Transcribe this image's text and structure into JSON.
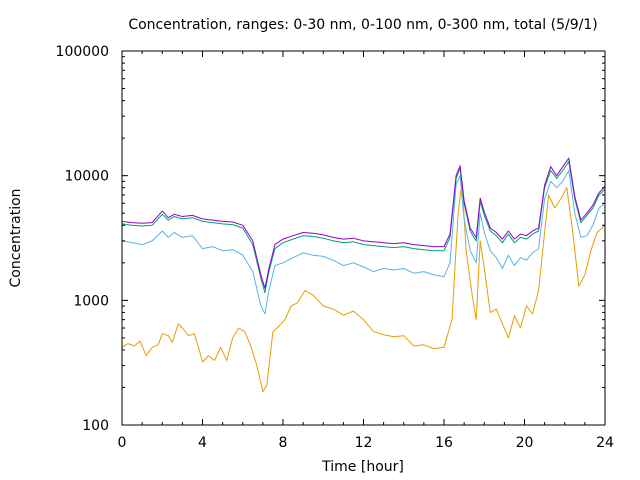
{
  "chart_data": {
    "type": "line",
    "title": "Concentration, ranges: 0-30 nm, 0-100 nm, 0-300 nm, total (5/9/1)",
    "xlabel": "Time [hour]",
    "ylabel": "Concentration",
    "xlim": [
      0,
      24
    ],
    "ylim": [
      100,
      100000
    ],
    "yscale": "log",
    "grid": false,
    "legend": "none",
    "x_ticks": [
      "0",
      "4",
      "8",
      "12",
      "16",
      "20",
      "24"
    ],
    "x_tick_values": [
      0,
      4,
      8,
      12,
      16,
      20,
      24
    ],
    "y_ticks": [
      "100",
      "1000",
      "10000",
      "100000"
    ],
    "y_tick_values": [
      100,
      1000,
      10000,
      100000
    ],
    "series": [
      {
        "color": "#e69f00",
        "points": [
          [
            0,
            420
          ],
          [
            0.3,
            450
          ],
          [
            0.6,
            430
          ],
          [
            0.9,
            470
          ],
          [
            1.2,
            360
          ],
          [
            1.5,
            420
          ],
          [
            1.8,
            440
          ],
          [
            2.0,
            540
          ],
          [
            2.3,
            520
          ],
          [
            2.5,
            460
          ],
          [
            2.8,
            650
          ],
          [
            3.0,
            600
          ],
          [
            3.3,
            520
          ],
          [
            3.6,
            540
          ],
          [
            3.8,
            420
          ],
          [
            4.0,
            320
          ],
          [
            4.3,
            360
          ],
          [
            4.6,
            330
          ],
          [
            4.9,
            420
          ],
          [
            5.2,
            330
          ],
          [
            5.5,
            500
          ],
          [
            5.8,
            600
          ],
          [
            6.1,
            560
          ],
          [
            6.4,
            430
          ],
          [
            6.7,
            300
          ],
          [
            7.0,
            185
          ],
          [
            7.2,
            210
          ],
          [
            7.5,
            560
          ],
          [
            7.8,
            620
          ],
          [
            8.1,
            700
          ],
          [
            8.4,
            900
          ],
          [
            8.7,
            950
          ],
          [
            9.1,
            1200
          ],
          [
            9.5,
            1100
          ],
          [
            10.0,
            900
          ],
          [
            10.5,
            850
          ],
          [
            11.0,
            760
          ],
          [
            11.5,
            820
          ],
          [
            12.0,
            700
          ],
          [
            12.5,
            560
          ],
          [
            13.0,
            530
          ],
          [
            13.5,
            510
          ],
          [
            14.0,
            520
          ],
          [
            14.5,
            430
          ],
          [
            15.0,
            440
          ],
          [
            15.5,
            410
          ],
          [
            16.0,
            420
          ],
          [
            16.4,
            700
          ],
          [
            16.7,
            5000
          ],
          [
            16.9,
            9000
          ],
          [
            17.1,
            2500
          ],
          [
            17.4,
            1100
          ],
          [
            17.6,
            700
          ],
          [
            17.8,
            3000
          ],
          [
            18.0,
            1800
          ],
          [
            18.3,
            800
          ],
          [
            18.6,
            850
          ],
          [
            18.9,
            650
          ],
          [
            19.2,
            500
          ],
          [
            19.5,
            750
          ],
          [
            19.8,
            600
          ],
          [
            20.1,
            900
          ],
          [
            20.4,
            780
          ],
          [
            20.7,
            1200
          ],
          [
            21.0,
            3500
          ],
          [
            21.2,
            7000
          ],
          [
            21.5,
            5500
          ],
          [
            21.8,
            6500
          ],
          [
            22.1,
            8000
          ],
          [
            22.4,
            3500
          ],
          [
            22.7,
            1300
          ],
          [
            23.0,
            1600
          ],
          [
            23.3,
            2500
          ],
          [
            23.6,
            3500
          ],
          [
            24.0,
            4000
          ]
        ]
      },
      {
        "color": "#56b4e9",
        "points": [
          [
            0,
            3000
          ],
          [
            0.5,
            2900
          ],
          [
            1.0,
            2800
          ],
          [
            1.5,
            3000
          ],
          [
            2.0,
            3600
          ],
          [
            2.3,
            3200
          ],
          [
            2.6,
            3500
          ],
          [
            3.0,
            3200
          ],
          [
            3.5,
            3300
          ],
          [
            4.0,
            2600
          ],
          [
            4.5,
            2700
          ],
          [
            5.0,
            2500
          ],
          [
            5.5,
            2550
          ],
          [
            6.0,
            2300
          ],
          [
            6.5,
            1700
          ],
          [
            6.9,
            900
          ],
          [
            7.1,
            780
          ],
          [
            7.3,
            1200
          ],
          [
            7.6,
            1900
          ],
          [
            8.0,
            2000
          ],
          [
            8.5,
            2200
          ],
          [
            9.0,
            2400
          ],
          [
            9.5,
            2300
          ],
          [
            10.0,
            2250
          ],
          [
            10.5,
            2100
          ],
          [
            11.0,
            1900
          ],
          [
            11.5,
            2000
          ],
          [
            12.0,
            1850
          ],
          [
            12.5,
            1700
          ],
          [
            13.0,
            1800
          ],
          [
            13.5,
            1750
          ],
          [
            14.0,
            1800
          ],
          [
            14.5,
            1650
          ],
          [
            15.0,
            1700
          ],
          [
            15.5,
            1600
          ],
          [
            16.0,
            1550
          ],
          [
            16.3,
            2000
          ],
          [
            16.6,
            8500
          ],
          [
            16.8,
            10000
          ],
          [
            17.0,
            4500
          ],
          [
            17.3,
            2500
          ],
          [
            17.6,
            2000
          ],
          [
            17.8,
            5000
          ],
          [
            18.0,
            3500
          ],
          [
            18.3,
            2500
          ],
          [
            18.6,
            2200
          ],
          [
            18.9,
            1800
          ],
          [
            19.2,
            2300
          ],
          [
            19.5,
            1900
          ],
          [
            19.8,
            2200
          ],
          [
            20.1,
            2100
          ],
          [
            20.4,
            2400
          ],
          [
            20.7,
            2600
          ],
          [
            21.0,
            6500
          ],
          [
            21.3,
            9000
          ],
          [
            21.6,
            8000
          ],
          [
            21.9,
            9000
          ],
          [
            22.2,
            11000
          ],
          [
            22.5,
            5000
          ],
          [
            22.8,
            3200
          ],
          [
            23.1,
            3300
          ],
          [
            23.4,
            4000
          ],
          [
            23.7,
            5500
          ],
          [
            24.0,
            6000
          ]
        ]
      },
      {
        "color": "#009e73",
        "points": [
          [
            0,
            4100
          ],
          [
            0.5,
            4000
          ],
          [
            1.0,
            3950
          ],
          [
            1.5,
            4000
          ],
          [
            2.0,
            4900
          ],
          [
            2.3,
            4400
          ],
          [
            2.6,
            4700
          ],
          [
            3.0,
            4500
          ],
          [
            3.5,
            4600
          ],
          [
            4.0,
            4300
          ],
          [
            4.5,
            4200
          ],
          [
            5.0,
            4100
          ],
          [
            5.5,
            4050
          ],
          [
            6.0,
            3800
          ],
          [
            6.5,
            2800
          ],
          [
            6.9,
            1500
          ],
          [
            7.1,
            1150
          ],
          [
            7.3,
            1700
          ],
          [
            7.6,
            2600
          ],
          [
            8.0,
            2900
          ],
          [
            8.5,
            3100
          ],
          [
            9.0,
            3300
          ],
          [
            9.5,
            3250
          ],
          [
            10.0,
            3150
          ],
          [
            10.5,
            3000
          ],
          [
            11.0,
            2900
          ],
          [
            11.5,
            2950
          ],
          [
            12.0,
            2800
          ],
          [
            12.5,
            2750
          ],
          [
            13.0,
            2700
          ],
          [
            13.5,
            2650
          ],
          [
            14.0,
            2700
          ],
          [
            14.5,
            2600
          ],
          [
            15.0,
            2550
          ],
          [
            15.5,
            2500
          ],
          [
            16.0,
            2500
          ],
          [
            16.3,
            3200
          ],
          [
            16.6,
            9500
          ],
          [
            16.8,
            11500
          ],
          [
            17.0,
            6000
          ],
          [
            17.3,
            3600
          ],
          [
            17.6,
            3000
          ],
          [
            17.8,
            6200
          ],
          [
            18.0,
            4800
          ],
          [
            18.3,
            3600
          ],
          [
            18.6,
            3300
          ],
          [
            18.9,
            2900
          ],
          [
            19.2,
            3400
          ],
          [
            19.5,
            2900
          ],
          [
            19.8,
            3200
          ],
          [
            20.1,
            3100
          ],
          [
            20.4,
            3400
          ],
          [
            20.7,
            3600
          ],
          [
            21.0,
            8000
          ],
          [
            21.3,
            11000
          ],
          [
            21.6,
            9500
          ],
          [
            21.9,
            11000
          ],
          [
            22.2,
            13000
          ],
          [
            22.5,
            6500
          ],
          [
            22.8,
            4200
          ],
          [
            23.1,
            4800
          ],
          [
            23.4,
            5500
          ],
          [
            23.7,
            7000
          ],
          [
            24.0,
            7800
          ]
        ]
      },
      {
        "color": "#9400d3",
        "points": [
          [
            0,
            4300
          ],
          [
            0.5,
            4200
          ],
          [
            1.0,
            4150
          ],
          [
            1.5,
            4200
          ],
          [
            2.0,
            5200
          ],
          [
            2.3,
            4600
          ],
          [
            2.6,
            4900
          ],
          [
            3.0,
            4700
          ],
          [
            3.5,
            4800
          ],
          [
            4.0,
            4500
          ],
          [
            4.5,
            4400
          ],
          [
            5.0,
            4300
          ],
          [
            5.5,
            4250
          ],
          [
            6.0,
            4000
          ],
          [
            6.5,
            3000
          ],
          [
            6.9,
            1600
          ],
          [
            7.1,
            1250
          ],
          [
            7.3,
            1800
          ],
          [
            7.6,
            2800
          ],
          [
            8.0,
            3100
          ],
          [
            8.5,
            3300
          ],
          [
            9.0,
            3500
          ],
          [
            9.5,
            3450
          ],
          [
            10.0,
            3350
          ],
          [
            10.5,
            3200
          ],
          [
            11.0,
            3100
          ],
          [
            11.5,
            3150
          ],
          [
            12.0,
            3000
          ],
          [
            12.5,
            2950
          ],
          [
            13.0,
            2900
          ],
          [
            13.5,
            2850
          ],
          [
            14.0,
            2900
          ],
          [
            14.5,
            2800
          ],
          [
            15.0,
            2750
          ],
          [
            15.5,
            2700
          ],
          [
            16.0,
            2700
          ],
          [
            16.3,
            3400
          ],
          [
            16.6,
            10000
          ],
          [
            16.8,
            12000
          ],
          [
            17.0,
            6300
          ],
          [
            17.3,
            3800
          ],
          [
            17.6,
            3200
          ],
          [
            17.8,
            6600
          ],
          [
            18.0,
            5100
          ],
          [
            18.3,
            3800
          ],
          [
            18.6,
            3500
          ],
          [
            18.9,
            3100
          ],
          [
            19.2,
            3600
          ],
          [
            19.5,
            3100
          ],
          [
            19.8,
            3400
          ],
          [
            20.1,
            3300
          ],
          [
            20.4,
            3600
          ],
          [
            20.7,
            3800
          ],
          [
            21.0,
            8400
          ],
          [
            21.3,
            11800
          ],
          [
            21.6,
            10000
          ],
          [
            21.9,
            11800
          ],
          [
            22.2,
            13800
          ],
          [
            22.5,
            6800
          ],
          [
            22.8,
            4400
          ],
          [
            23.1,
            5000
          ],
          [
            23.4,
            5800
          ],
          [
            23.7,
            7300
          ],
          [
            24.0,
            8200
          ]
        ]
      }
    ]
  }
}
